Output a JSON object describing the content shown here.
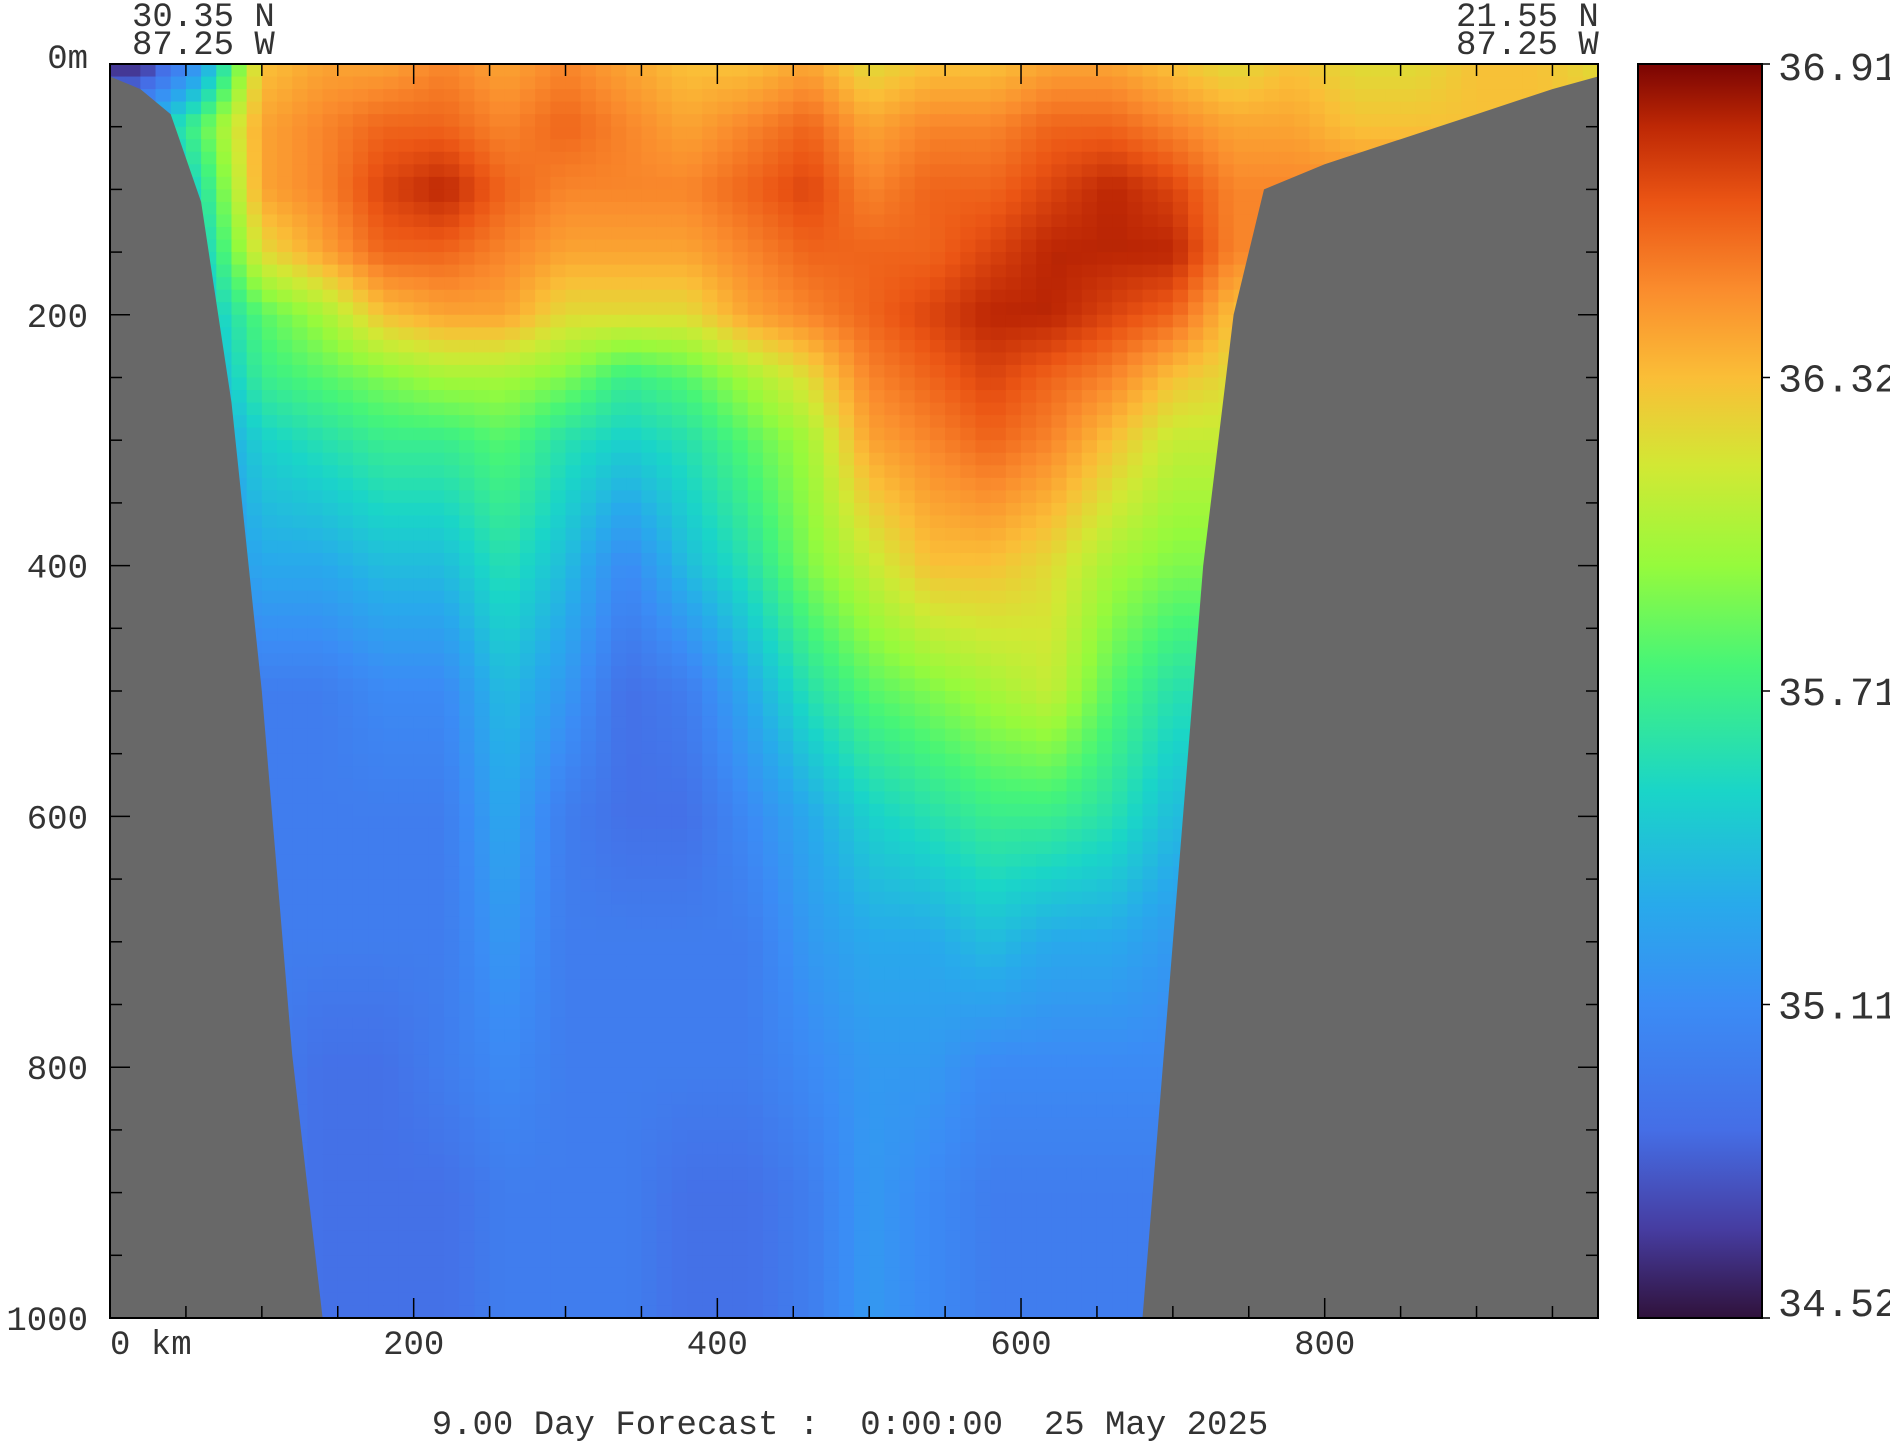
{
  "chart_data": {
    "type": "heatmap",
    "title": "",
    "caption": "9.00 Day Forecast :  0:00:00  25 May 2025",
    "section": {
      "start": {
        "lat": "30.35 N",
        "lon": "87.25 W"
      },
      "end": {
        "lat": "21.55 N",
        "lon": "87.25 W"
      }
    },
    "xlabel": "",
    "ylabel": "",
    "x_unit_label": "km",
    "y_unit_label": "m",
    "xlim": [
      0,
      980
    ],
    "ylim": [
      0,
      1000
    ],
    "y_inverted": true,
    "x_ticks": [
      0,
      200,
      400,
      600,
      800
    ],
    "x_tick_labels": [
      "0 km",
      "200",
      "400",
      "600",
      "800"
    ],
    "y_ticks": [
      0,
      200,
      400,
      600,
      800,
      1000
    ],
    "y_tick_labels": [
      "0m",
      "200",
      "400",
      "600",
      "800",
      "1000"
    ],
    "colorbar": {
      "min": 34.52,
      "max": 36.91,
      "tick_values": [
        36.91,
        36.32,
        35.71,
        35.11,
        34.52
      ],
      "tick_labels": [
        "36.91",
        "36.32",
        "35.71",
        "35.11",
        "34.52"
      ],
      "colormap": "turbo"
    },
    "land_color": "#686868",
    "bathymetry": {
      "x_km": [
        0,
        20,
        40,
        60,
        80,
        100,
        120,
        140,
        180,
        260,
        300,
        400,
        500,
        600,
        680,
        700,
        720,
        740,
        760,
        800,
        850,
        900,
        950,
        980
      ],
      "depth_m": [
        10,
        20,
        40,
        110,
        270,
        500,
        790,
        1000,
        1000,
        1000,
        1000,
        1000,
        1000,
        1000,
        1000,
        700,
        400,
        200,
        100,
        80,
        60,
        40,
        20,
        10
      ]
    },
    "field": {
      "x_km": [
        20,
        60,
        100,
        140,
        180,
        220,
        260,
        300,
        340,
        380,
        420,
        460,
        500,
        540,
        580,
        620,
        660,
        700,
        740,
        780,
        820,
        860,
        900,
        940,
        980
      ],
      "depth_m": [
        0,
        50,
        100,
        150,
        200,
        250,
        300,
        400,
        500,
        600,
        700,
        800,
        900,
        1000
      ],
      "salinity": [
        [
          34.6,
          35.2,
          36.3,
          36.4,
          36.4,
          36.5,
          36.4,
          36.5,
          36.4,
          36.3,
          36.3,
          36.4,
          36.2,
          36.3,
          36.3,
          36.4,
          36.4,
          36.3,
          36.2,
          36.3,
          36.2,
          36.2,
          36.3,
          36.3,
          36.2
        ],
        [
          35.3,
          35.8,
          36.4,
          36.5,
          36.6,
          36.6,
          36.5,
          36.6,
          36.5,
          36.4,
          36.5,
          36.6,
          36.4,
          36.5,
          36.5,
          36.6,
          36.6,
          36.5,
          36.4,
          36.4,
          36.3,
          36.3,
          36.3,
          36.3,
          36.3
        ],
        [
          35.2,
          35.6,
          36.4,
          36.5,
          36.7,
          36.8,
          36.6,
          36.5,
          36.5,
          36.5,
          36.6,
          36.7,
          36.5,
          36.6,
          36.6,
          36.7,
          36.8,
          36.7,
          36.5,
          36.5,
          36.5,
          36.5,
          36.5,
          36.5,
          36.5
        ],
        [
          35.1,
          35.5,
          36.2,
          36.4,
          36.6,
          36.6,
          36.5,
          36.4,
          36.4,
          36.4,
          36.5,
          36.6,
          36.6,
          36.6,
          36.7,
          36.8,
          36.8,
          36.8,
          36.5,
          36.5,
          36.5,
          36.5,
          36.5,
          36.5,
          36.5
        ],
        [
          35.0,
          35.4,
          35.8,
          36.0,
          36.3,
          36.4,
          36.4,
          36.2,
          36.2,
          36.2,
          36.4,
          36.5,
          36.6,
          36.7,
          36.8,
          36.8,
          36.7,
          36.6,
          36.3,
          36.3,
          36.3,
          36.3,
          36.3,
          36.3,
          36.3
        ],
        [
          35.0,
          35.3,
          35.7,
          35.8,
          35.9,
          36.0,
          36.0,
          35.9,
          35.7,
          35.8,
          36.0,
          36.2,
          36.5,
          36.6,
          36.7,
          36.6,
          36.5,
          36.3,
          36.2,
          36.2,
          36.2,
          36.2,
          36.2,
          36.2,
          36.2
        ],
        [
          35.0,
          35.2,
          35.5,
          35.6,
          35.7,
          35.7,
          35.8,
          35.6,
          35.5,
          35.6,
          35.8,
          36.0,
          36.4,
          36.5,
          36.6,
          36.5,
          36.3,
          36.1,
          36.1,
          36.1,
          36.1,
          36.1,
          36.1,
          36.1,
          36.1
        ],
        [
          35.0,
          35.1,
          35.3,
          35.3,
          35.4,
          35.4,
          35.6,
          35.4,
          35.1,
          35.4,
          35.6,
          35.9,
          36.1,
          36.3,
          36.3,
          36.2,
          36.0,
          35.9,
          35.9,
          35.9,
          35.9,
          35.9,
          35.9,
          35.9,
          35.9
        ],
        [
          35.0,
          35.0,
          35.0,
          35.0,
          35.1,
          35.1,
          35.4,
          35.2,
          34.9,
          35.0,
          35.3,
          35.6,
          35.8,
          35.9,
          36.0,
          36.1,
          35.8,
          35.6,
          35.6,
          35.6,
          35.6,
          35.6,
          35.6,
          35.6,
          35.6
        ],
        [
          35.0,
          35.0,
          35.0,
          35.0,
          35.0,
          35.0,
          35.3,
          35.0,
          34.9,
          34.9,
          35.1,
          35.3,
          35.5,
          35.6,
          35.7,
          35.7,
          35.6,
          35.4,
          35.4,
          35.4,
          35.4,
          35.4,
          35.4,
          35.4,
          35.4
        ],
        [
          35.0,
          35.0,
          35.0,
          35.0,
          35.0,
          35.0,
          35.2,
          35.0,
          35.0,
          35.0,
          35.0,
          35.2,
          35.3,
          35.3,
          35.4,
          35.3,
          35.3,
          35.2,
          35.2,
          35.2,
          35.2,
          35.2,
          35.2,
          35.2,
          35.2
        ],
        [
          35.0,
          35.0,
          35.0,
          34.9,
          34.9,
          35.0,
          35.1,
          35.0,
          35.0,
          35.0,
          35.0,
          35.1,
          35.2,
          35.2,
          35.1,
          35.1,
          35.1,
          35.1,
          35.1,
          35.1,
          35.1,
          35.1,
          35.1,
          35.1,
          35.1
        ],
        [
          35.0,
          35.0,
          35.0,
          34.9,
          34.9,
          34.9,
          35.0,
          35.0,
          35.0,
          34.9,
          34.9,
          35.0,
          35.2,
          35.1,
          35.0,
          35.0,
          35.0,
          35.0,
          35.0,
          35.0,
          35.0,
          35.0,
          35.0,
          35.0,
          35.0
        ],
        [
          35.0,
          35.0,
          35.0,
          34.9,
          34.9,
          34.9,
          35.0,
          35.0,
          35.0,
          34.9,
          34.9,
          35.0,
          35.2,
          35.1,
          35.0,
          35.0,
          35.0,
          35.0,
          35.0,
          35.0,
          35.0,
          35.0,
          35.0,
          35.0,
          35.0
        ]
      ]
    }
  }
}
